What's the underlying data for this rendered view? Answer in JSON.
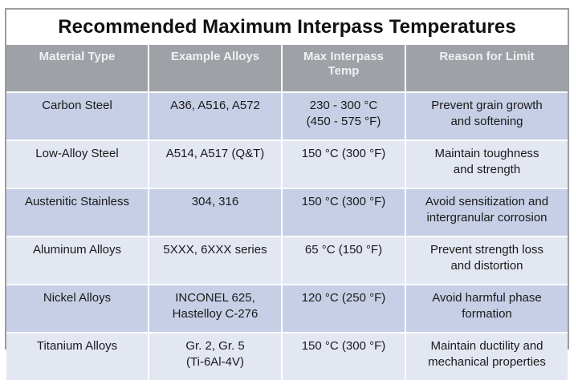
{
  "title": "Recommended Maximum Interpass Temperatures",
  "headers": {
    "material": "Material Type",
    "alloys": "Example Alloys",
    "temp": "Max Interpass Temp",
    "reason": "Reason for Limit"
  },
  "rows": [
    {
      "material": "Carbon Steel",
      "alloys": [
        "A36, A516, A572"
      ],
      "temp": [
        "230 - 300 °C",
        "(450 - 575 °F)"
      ],
      "reason": [
        "Prevent grain growth",
        "and softening"
      ]
    },
    {
      "material": "Low-Alloy Steel",
      "alloys": [
        "A514, A517 (Q&T)"
      ],
      "temp": [
        "150 °C (300 °F)"
      ],
      "reason": [
        "Maintain toughness",
        "and strength"
      ]
    },
    {
      "material": "Austenitic Stainless",
      "alloys": [
        "304, 316"
      ],
      "temp": [
        "150 °C (300 °F)"
      ],
      "reason": [
        "Avoid sensitization and",
        "intergranular corrosion"
      ]
    },
    {
      "material": "Aluminum Alloys",
      "alloys": [
        "5XXX, 6XXX series"
      ],
      "temp": [
        "65 °C (150 °F)"
      ],
      "reason": [
        "Prevent strength loss",
        "and distortion"
      ]
    },
    {
      "material": "Nickel Alloys",
      "alloys": [
        "INCONEL 625,",
        "Hastelloy C-276"
      ],
      "temp": [
        "120 °C (250 °F)"
      ],
      "reason": [
        "Avoid harmful phase",
        "formation"
      ]
    },
    {
      "material": "Titanium Alloys",
      "alloys": [
        "Gr. 2, Gr. 5",
        "(Ti-6Al-4V)"
      ],
      "temp": [
        "150 °C (300 °F)"
      ],
      "reason": [
        "Maintain ductility and",
        "mechanical properties"
      ]
    }
  ]
}
